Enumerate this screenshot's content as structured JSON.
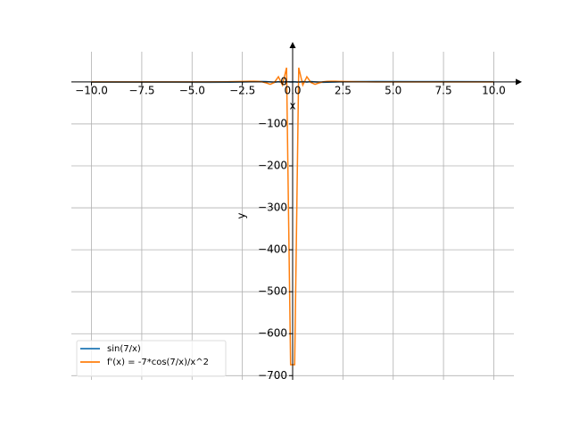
{
  "chart_data": {
    "type": "line",
    "x": [
      -10,
      -6.162,
      -4.141,
      -3.131,
      -2.525,
      -2.121,
      -1.919,
      -1.717,
      -1.515,
      -1.313,
      -1.111,
      -0.909,
      -0.707,
      -0.505,
      -0.303,
      -0.101,
      0.101,
      0.303,
      0.505,
      0.707,
      0.909,
      1.111,
      1.313,
      1.515,
      1.717,
      1.919,
      2.121,
      2.525,
      3.131,
      4.141,
      6.162,
      10
    ],
    "series": [
      {
        "name": "sin(7/x)",
        "color": "#1f77b4",
        "values": [
          -0.644,
          -0.907,
          -0.993,
          -0.786,
          -0.36,
          0.158,
          0.487,
          0.805,
          0.996,
          0.815,
          -0.017,
          -0.988,
          0.458,
          -0.962,
          0.9,
          -0.184,
          0.184,
          -0.9,
          0.962,
          -0.458,
          0.988,
          0.017,
          -0.815,
          -0.996,
          -0.805,
          -0.487,
          -0.158,
          0.36,
          0.786,
          0.993,
          0.907,
          0.644
        ]
      },
      {
        "name": "f'(x) = -7*cos(7/x)/x^2",
        "color": "#ff7f0e",
        "values": [
          -0.054,
          -0.077,
          0.05,
          0.44,
          1.02,
          1.54,
          1.66,
          1.41,
          0.28,
          -2.36,
          -5.67,
          -1.3,
          12.4,
          -7.49,
          34.0,
          -674,
          -674,
          34.0,
          -7.49,
          12.4,
          -1.3,
          -5.67,
          -2.36,
          0.28,
          1.41,
          1.66,
          1.54,
          1.02,
          0.44,
          0.05,
          -0.077,
          -0.054
        ]
      }
    ],
    "xlabel": "x",
    "ylabel": "y",
    "xlim": [
      -11,
      11
    ],
    "ylim": [
      -710,
      72
    ],
    "xticks": [
      {
        "value": -10,
        "label": "−10.0"
      },
      {
        "value": -7.5,
        "label": "−7.5"
      },
      {
        "value": -5,
        "label": "−5.0"
      },
      {
        "value": -2.5,
        "label": "−2.5"
      },
      {
        "value": 0,
        "label": "0.0"
      },
      {
        "value": 2.5,
        "label": "2.5"
      },
      {
        "value": 5,
        "label": "5.0"
      },
      {
        "value": 7.5,
        "label": "7.5"
      },
      {
        "value": 10,
        "label": "10.0"
      }
    ],
    "yticks": [
      0,
      {
        "value": -100,
        "label": "−100"
      },
      {
        "value": -200,
        "label": "−200"
      },
      {
        "value": -300,
        "label": "−300"
      },
      {
        "value": -400,
        "label": "−400"
      },
      {
        "value": -500,
        "label": "−500"
      },
      {
        "value": -600,
        "label": "−600"
      },
      {
        "value": -700,
        "label": "−700"
      }
    ],
    "grid": true,
    "legend": "lower left"
  }
}
